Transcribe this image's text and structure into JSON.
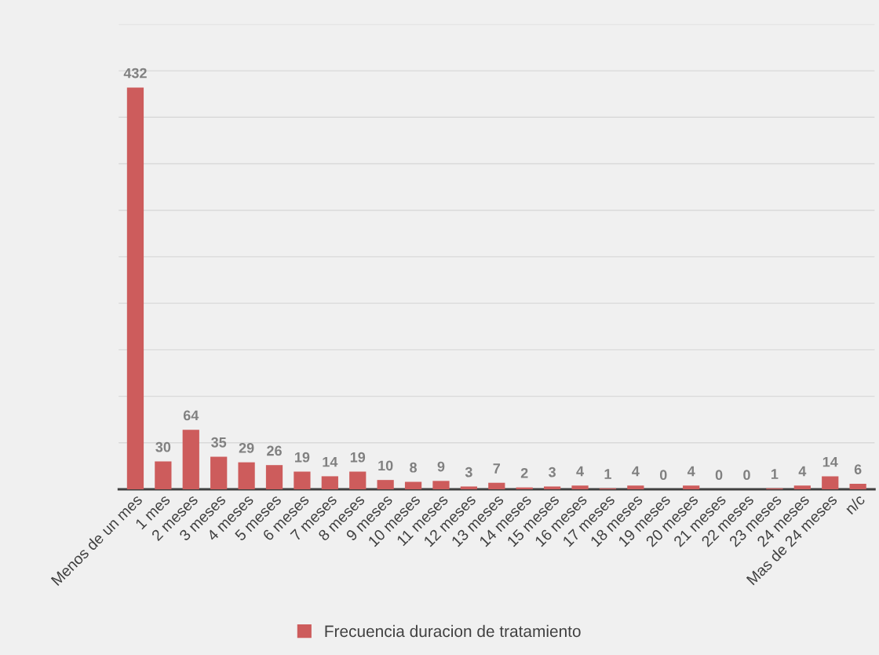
{
  "chart_data": {
    "type": "bar",
    "categories": [
      "Menos de un mes",
      "1 mes",
      "2 meses",
      "3 meses",
      "4 meses",
      "5 meses",
      "6 meses",
      "7 meses",
      "8 meses",
      "9 meses",
      "10 meses",
      "11 meses",
      "12 meses",
      "13 meses",
      "14 meses",
      "15 meses",
      "16 meses",
      "17 meses",
      "18 meses",
      "19 meses",
      "20 meses",
      "21 meses",
      "22 meses",
      "23 meses",
      "24 meses",
      "Mas de 24 meses",
      "n/c"
    ],
    "series": [
      {
        "name": "Frecuencia duracion de tratamiento",
        "color": "#cd5c5c",
        "values": [
          432,
          30,
          64,
          35,
          29,
          26,
          19,
          14,
          19,
          10,
          8,
          9,
          3,
          7,
          2,
          3,
          4,
          1,
          4,
          0,
          4,
          0,
          0,
          1,
          4,
          14,
          6
        ]
      }
    ],
    "ylim": [
      0,
      500
    ],
    "yticks": [
      {
        "value": 0,
        "label": null
      },
      {
        "value": 50,
        "label": null
      },
      {
        "value": 100,
        "label": null
      },
      {
        "value": 150,
        "label": null
      },
      {
        "value": 200,
        "label": null
      },
      {
        "value": 250,
        "label": null
      },
      {
        "value": 300,
        "label": null
      },
      {
        "value": 350,
        "label": null
      },
      {
        "value": 400,
        "label": null
      },
      {
        "value": 450,
        "label": null
      },
      {
        "value": 500,
        "label": null
      }
    ],
    "tick_labels": "x",
    "grid": "y",
    "legend": "bottom",
    "data_labels": true
  }
}
